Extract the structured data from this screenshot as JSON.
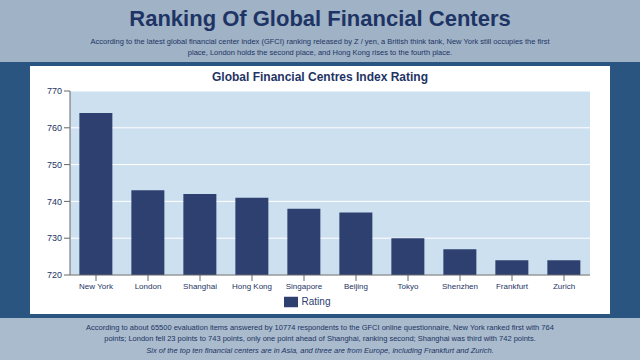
{
  "chart_data": {
    "type": "bar",
    "title": "Global Financial Centres Index Rating",
    "subtitle": "According to the latest global financial center index (GFCI) ranking released by Z / yen, a British think tank, New York still occupies the first\nplace, London holds the second place, and Hong Kong rises to the fourth place.",
    "annotations": [
      "Ranking Of Global Financial Centers",
      "According to about 65500 evaluation items answered by 10774 respondents to the GFCI online questionnaire, New York ranked first with 764\npoints; London fell 23 points to 743 points, only one point ahead of Shanghai, ranking second; Shanghai was third with 742 points.",
      "Six of the top ten financial centers are in Asia, and three are from Europe, including Frankfurt and Zurich."
    ],
    "categories": [
      "New York",
      "London",
      "Shanghai",
      "Hong Kong",
      "Singapore",
      "Beijing",
      "Tokyo",
      "Shenzhen",
      "Frankfurt",
      "Zurich"
    ],
    "series": [
      {
        "name": "Rating",
        "color": "#2d4070",
        "values": [
          764,
          743,
          742,
          741,
          738,
          737,
          730,
          727,
          724,
          724
        ]
      }
    ],
    "ylim": [
      720,
      770
    ],
    "yticks": [
      720,
      730,
      740,
      750,
      760,
      770
    ],
    "grid": true,
    "legend": "bottom"
  }
}
